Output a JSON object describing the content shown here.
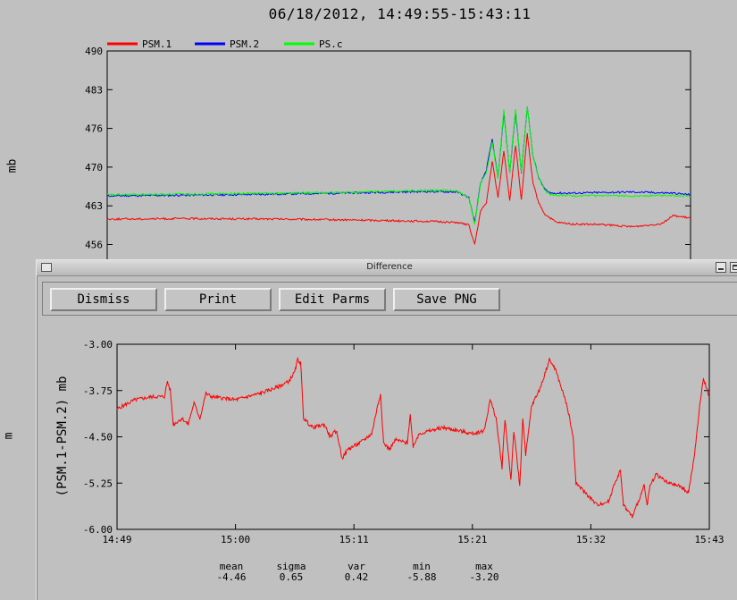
{
  "main_window": {
    "title": "06/18/2012, 14:49:55-15:43:11",
    "left_label_top": "mb",
    "left_label_bottom": "m"
  },
  "top_chart": {
    "chart_data": {
      "type": "line",
      "ylim": [
        456,
        490
      ],
      "y_ticks": [
        "490",
        "483",
        "476",
        "470",
        "463",
        "456"
      ],
      "grid": false,
      "legend_position": "top-left",
      "series": [
        {
          "name": "PSM.1",
          "color": "#ff0000",
          "points": [
            [
              0,
              459.6
            ],
            [
              0.15,
              459.7
            ],
            [
              0.3,
              459.6
            ],
            [
              0.45,
              459.4
            ],
            [
              0.55,
              459.2
            ],
            [
              0.6,
              459.0
            ],
            [
              0.62,
              458.5
            ],
            [
              0.63,
              455.0
            ],
            [
              0.64,
              461.0
            ],
            [
              0.65,
              462.5
            ],
            [
              0.66,
              470
            ],
            [
              0.67,
              463.5
            ],
            [
              0.68,
              472
            ],
            [
              0.69,
              463
            ],
            [
              0.7,
              473
            ],
            [
              0.71,
              463
            ],
            [
              0.72,
              475
            ],
            [
              0.73,
              466
            ],
            [
              0.74,
              462.5
            ],
            [
              0.75,
              460.5
            ],
            [
              0.77,
              459.0
            ],
            [
              0.8,
              458.7
            ],
            [
              0.85,
              458.6
            ],
            [
              0.9,
              458.2
            ],
            [
              0.95,
              458.8
            ],
            [
              0.97,
              460.2
            ],
            [
              1,
              459.8
            ]
          ]
        },
        {
          "name": "PSM.2",
          "color": "#0000ff",
          "points": [
            [
              0,
              463.8
            ],
            [
              0.2,
              464.0
            ],
            [
              0.4,
              464.3
            ],
            [
              0.55,
              464.6
            ],
            [
              0.6,
              464.5
            ],
            [
              0.62,
              463.5
            ],
            [
              0.63,
              459.0
            ],
            [
              0.64,
              466
            ],
            [
              0.65,
              468.5
            ],
            [
              0.66,
              474
            ],
            [
              0.67,
              467
            ],
            [
              0.68,
              479
            ],
            [
              0.69,
              468
            ],
            [
              0.7,
              479
            ],
            [
              0.71,
              468
            ],
            [
              0.72,
              480
            ],
            [
              0.73,
              471
            ],
            [
              0.74,
              467
            ],
            [
              0.75,
              465
            ],
            [
              0.76,
              464.3
            ],
            [
              0.8,
              464.3
            ],
            [
              0.9,
              464.5
            ],
            [
              0.97,
              464.3
            ],
            [
              1,
              464.0
            ]
          ]
        },
        {
          "name": "PS.c",
          "color": "#00ff00",
          "points": [
            [
              0,
              464.0
            ],
            [
              0.2,
              464.2
            ],
            [
              0.4,
              464.4
            ],
            [
              0.55,
              464.8
            ],
            [
              0.6,
              464.7
            ],
            [
              0.62,
              463.5
            ],
            [
              0.63,
              458.5
            ],
            [
              0.64,
              466
            ],
            [
              0.65,
              468
            ],
            [
              0.66,
              473.5
            ],
            [
              0.67,
              467
            ],
            [
              0.68,
              479.5
            ],
            [
              0.69,
              468
            ],
            [
              0.7,
              479.5
            ],
            [
              0.71,
              468
            ],
            [
              0.72,
              480
            ],
            [
              0.73,
              471
            ],
            [
              0.74,
              467
            ],
            [
              0.75,
              464.8
            ],
            [
              0.76,
              464.0
            ],
            [
              0.8,
              463.8
            ],
            [
              0.9,
              463.8
            ],
            [
              0.97,
              463.9
            ],
            [
              1,
              463.8
            ]
          ]
        }
      ]
    }
  },
  "dialog": {
    "title": "Difference",
    "buttons": {
      "dismiss": "Dismiss",
      "print": "Print",
      "edit_parms": "Edit Parms",
      "save_png": "Save PNG"
    },
    "chart_data": {
      "type": "line",
      "ylabel": "(PSM.1-PSM.2) mb",
      "ylim": [
        -6.0,
        -3.0
      ],
      "y_ticks": [
        "-3.00",
        "-3.75",
        "-4.50",
        "-5.25",
        "-6.00"
      ],
      "x_ticks": [
        "14:49",
        "15:00",
        "15:11",
        "15:21",
        "15:32",
        "15:43"
      ],
      "grid": false,
      "series": [
        {
          "name": "PSM.1-PSM.2",
          "color": "#ff0000",
          "points": [
            [
              0,
              -4.05
            ],
            [
              0.03,
              -3.9
            ],
            [
              0.06,
              -3.85
            ],
            [
              0.08,
              -3.85
            ],
            [
              0.085,
              -3.6
            ],
            [
              0.09,
              -3.75
            ],
            [
              0.095,
              -4.3
            ],
            [
              0.11,
              -4.2
            ],
            [
              0.12,
              -4.3
            ],
            [
              0.13,
              -3.95
            ],
            [
              0.14,
              -4.2
            ],
            [
              0.15,
              -3.8
            ],
            [
              0.16,
              -3.85
            ],
            [
              0.2,
              -3.9
            ],
            [
              0.24,
              -3.8
            ],
            [
              0.27,
              -3.7
            ],
            [
              0.29,
              -3.6
            ],
            [
              0.3,
              -3.45
            ],
            [
              0.305,
              -3.25
            ],
            [
              0.31,
              -3.3
            ],
            [
              0.315,
              -4.2
            ],
            [
              0.33,
              -4.35
            ],
            [
              0.35,
              -4.3
            ],
            [
              0.36,
              -4.5
            ],
            [
              0.37,
              -4.4
            ],
            [
              0.375,
              -4.6
            ],
            [
              0.38,
              -4.85
            ],
            [
              0.39,
              -4.7
            ],
            [
              0.41,
              -4.6
            ],
            [
              0.43,
              -4.45
            ],
            [
              0.44,
              -4.0
            ],
            [
              0.445,
              -3.8
            ],
            [
              0.45,
              -4.6
            ],
            [
              0.46,
              -4.7
            ],
            [
              0.47,
              -4.55
            ],
            [
              0.49,
              -4.6
            ],
            [
              0.495,
              -4.15
            ],
            [
              0.5,
              -4.65
            ],
            [
              0.51,
              -4.45
            ],
            [
              0.55,
              -4.35
            ],
            [
              0.6,
              -4.45
            ],
            [
              0.62,
              -4.4
            ],
            [
              0.63,
              -3.9
            ],
            [
              0.64,
              -4.2
            ],
            [
              0.65,
              -5.0
            ],
            [
              0.655,
              -4.2
            ],
            [
              0.665,
              -5.2
            ],
            [
              0.67,
              -4.4
            ],
            [
              0.68,
              -5.3
            ],
            [
              0.685,
              -4.2
            ],
            [
              0.69,
              -4.8
            ],
            [
              0.7,
              -4.0
            ],
            [
              0.715,
              -3.7
            ],
            [
              0.73,
              -3.25
            ],
            [
              0.74,
              -3.4
            ],
            [
              0.76,
              -4.0
            ],
            [
              0.77,
              -4.5
            ],
            [
              0.775,
              -5.25
            ],
            [
              0.79,
              -5.4
            ],
            [
              0.81,
              -5.6
            ],
            [
              0.83,
              -5.55
            ],
            [
              0.84,
              -5.25
            ],
            [
              0.85,
              -5.05
            ],
            [
              0.855,
              -5.6
            ],
            [
              0.87,
              -5.8
            ],
            [
              0.88,
              -5.55
            ],
            [
              0.89,
              -5.3
            ],
            [
              0.895,
              -5.6
            ],
            [
              0.9,
              -5.3
            ],
            [
              0.91,
              -5.1
            ],
            [
              0.93,
              -5.25
            ],
            [
              0.95,
              -5.3
            ],
            [
              0.965,
              -5.4
            ],
            [
              0.975,
              -4.8
            ],
            [
              0.985,
              -3.9
            ],
            [
              0.99,
              -3.55
            ],
            [
              1,
              -3.85
            ]
          ]
        }
      ]
    },
    "stats": {
      "mean": {
        "label": "mean",
        "value": "-4.46"
      },
      "sigma": {
        "label": "sigma",
        "value": "0.65"
      },
      "var": {
        "label": "var",
        "value": "0.42"
      },
      "min": {
        "label": "min",
        "value": "-5.88"
      },
      "max": {
        "label": "max",
        "value": "-3.20"
      }
    }
  }
}
